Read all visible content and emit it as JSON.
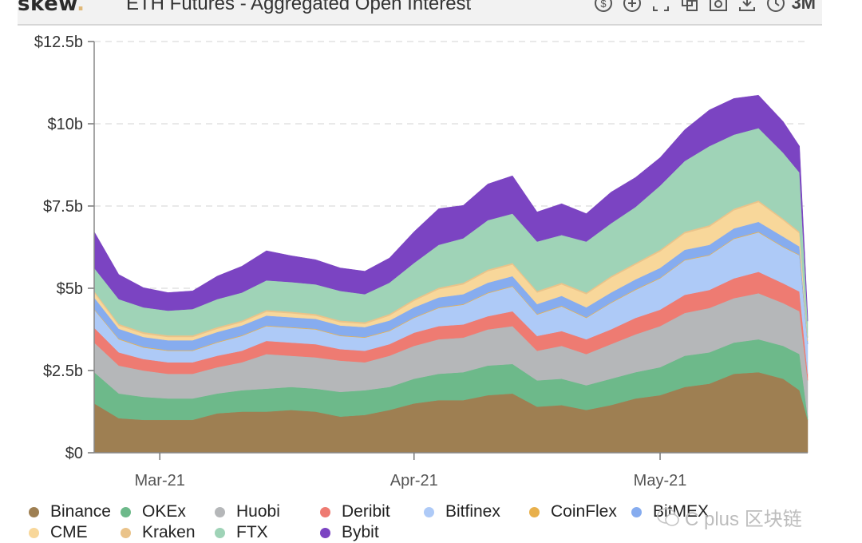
{
  "header": {
    "logo": "skew",
    "logo_dot": ".",
    "title": "ETH Futures - Aggregated Open Interest",
    "toolbar_icons": [
      "dollar-icon",
      "plus-icon",
      "fullscreen-icon",
      "copy-icon",
      "camera-icon",
      "download-icon",
      "clock-icon"
    ],
    "range": "3M"
  },
  "watermark": "C plus 区块链",
  "chart_data": {
    "type": "area",
    "stacked": true,
    "title": "ETH Futures - Aggregated Open Interest",
    "xlabel": "",
    "ylabel": "",
    "ylim": [
      0,
      12.5
    ],
    "yticks": [
      0,
      2.5,
      5,
      7.5,
      10,
      12.5
    ],
    "ytick_labels": [
      "$0",
      "$2.5b",
      "$5b",
      "$7.5b",
      "$10b",
      "$12.5b"
    ],
    "xticks": [
      "2021-03-01",
      "2021-04-01",
      "2021-05-01"
    ],
    "xtick_labels": [
      "Mar-21",
      "Apr-21",
      "May-21"
    ],
    "x_start": "2021-02-21",
    "x_end": "2021-05-19",
    "grid": true,
    "legend_position": "bottom",
    "x": [
      "2021-02-21",
      "2021-02-24",
      "2021-02-27",
      "2021-03-02",
      "2021-03-05",
      "2021-03-08",
      "2021-03-11",
      "2021-03-14",
      "2021-03-17",
      "2021-03-20",
      "2021-03-23",
      "2021-03-26",
      "2021-03-29",
      "2021-04-01",
      "2021-04-04",
      "2021-04-07",
      "2021-04-10",
      "2021-04-13",
      "2021-04-16",
      "2021-04-19",
      "2021-04-22",
      "2021-04-25",
      "2021-04-28",
      "2021-05-01",
      "2021-05-04",
      "2021-05-07",
      "2021-05-10",
      "2021-05-13",
      "2021-05-16",
      "2021-05-18",
      "2021-05-19"
    ],
    "series": [
      {
        "name": "Binance",
        "color": "#9e7f52",
        "values": [
          1.5,
          1.05,
          1.0,
          1.0,
          1.0,
          1.2,
          1.25,
          1.25,
          1.3,
          1.25,
          1.1,
          1.15,
          1.3,
          1.5,
          1.6,
          1.6,
          1.75,
          1.8,
          1.4,
          1.45,
          1.3,
          1.45,
          1.65,
          1.75,
          2.0,
          2.1,
          2.4,
          2.45,
          2.25,
          1.9,
          1.0
        ]
      },
      {
        "name": "OKEx",
        "color": "#6db98a",
        "values": [
          0.95,
          0.75,
          0.7,
          0.65,
          0.65,
          0.6,
          0.65,
          0.7,
          0.7,
          0.7,
          0.75,
          0.75,
          0.7,
          0.75,
          0.8,
          0.85,
          0.9,
          0.9,
          0.8,
          0.8,
          0.75,
          0.8,
          0.8,
          0.85,
          0.95,
          0.95,
          0.95,
          1.0,
          1.0,
          1.1,
          0.1
        ]
      },
      {
        "name": "Huobi",
        "color": "#b5b7b9",
        "values": [
          0.9,
          0.85,
          0.8,
          0.75,
          0.75,
          0.8,
          0.85,
          1.05,
          0.95,
          0.95,
          0.95,
          0.85,
          0.95,
          1.0,
          1.05,
          1.05,
          1.1,
          1.15,
          0.9,
          1.0,
          0.95,
          1.05,
          1.15,
          1.25,
          1.3,
          1.35,
          1.35,
          1.4,
          1.3,
          1.3,
          1.1
        ]
      },
      {
        "name": "Deribit",
        "color": "#ee7b72",
        "values": [
          0.45,
          0.4,
          0.35,
          0.35,
          0.35,
          0.35,
          0.35,
          0.4,
          0.4,
          0.4,
          0.35,
          0.35,
          0.35,
          0.4,
          0.4,
          0.4,
          0.4,
          0.45,
          0.45,
          0.45,
          0.45,
          0.45,
          0.5,
          0.5,
          0.55,
          0.55,
          0.6,
          0.65,
          0.6,
          0.6,
          0.2
        ]
      },
      {
        "name": "Bitfinex",
        "color": "#aecaf7",
        "values": [
          0.55,
          0.4,
          0.35,
          0.35,
          0.35,
          0.4,
          0.45,
          0.45,
          0.45,
          0.45,
          0.4,
          0.4,
          0.4,
          0.45,
          0.55,
          0.6,
          0.7,
          0.75,
          0.65,
          0.75,
          0.65,
          0.8,
          0.85,
          0.95,
          1.05,
          1.05,
          1.2,
          1.2,
          1.1,
          1.1,
          0.9
        ]
      },
      {
        "name": "CoinFlex",
        "color": "#e8b04c",
        "values": [
          0.02,
          0.02,
          0.02,
          0.02,
          0.02,
          0.02,
          0.02,
          0.02,
          0.02,
          0.02,
          0.02,
          0.02,
          0.02,
          0.02,
          0.02,
          0.02,
          0.02,
          0.02,
          0.02,
          0.02,
          0.02,
          0.02,
          0.02,
          0.02,
          0.02,
          0.02,
          0.02,
          0.02,
          0.02,
          0.02,
          0.0
        ]
      },
      {
        "name": "BitMEX",
        "color": "#86acef",
        "values": [
          0.35,
          0.3,
          0.3,
          0.3,
          0.3,
          0.3,
          0.3,
          0.3,
          0.3,
          0.3,
          0.3,
          0.3,
          0.3,
          0.3,
          0.3,
          0.3,
          0.3,
          0.3,
          0.3,
          0.3,
          0.3,
          0.3,
          0.3,
          0.3,
          0.3,
          0.3,
          0.3,
          0.3,
          0.3,
          0.25,
          0.1
        ]
      },
      {
        "name": "CME",
        "color": "#f8d79a",
        "values": [
          0.15,
          0.1,
          0.1,
          0.1,
          0.1,
          0.1,
          0.1,
          0.12,
          0.12,
          0.1,
          0.1,
          0.1,
          0.15,
          0.2,
          0.25,
          0.3,
          0.35,
          0.35,
          0.35,
          0.35,
          0.4,
          0.45,
          0.45,
          0.5,
          0.5,
          0.55,
          0.55,
          0.6,
          0.5,
          0.4,
          0.1
        ]
      },
      {
        "name": "Kraken",
        "color": "#eac38a",
        "values": [
          0.05,
          0.05,
          0.05,
          0.05,
          0.05,
          0.05,
          0.05,
          0.05,
          0.05,
          0.05,
          0.05,
          0.05,
          0.05,
          0.05,
          0.05,
          0.05,
          0.05,
          0.05,
          0.05,
          0.05,
          0.05,
          0.05,
          0.05,
          0.05,
          0.05,
          0.05,
          0.05,
          0.05,
          0.05,
          0.05,
          0.0
        ]
      },
      {
        "name": "FTX",
        "color": "#9fd3b7",
        "values": [
          0.7,
          0.75,
          0.75,
          0.75,
          0.8,
          0.85,
          0.85,
          0.9,
          0.9,
          0.9,
          0.9,
          0.85,
          0.95,
          1.1,
          1.3,
          1.35,
          1.5,
          1.5,
          1.5,
          1.45,
          1.55,
          1.6,
          1.7,
          1.95,
          2.15,
          2.4,
          2.25,
          2.2,
          2.0,
          1.8,
          0.5
        ]
      },
      {
        "name": "Bybit",
        "color": "#7b44c2",
        "values": [
          1.1,
          0.75,
          0.6,
          0.55,
          0.55,
          0.7,
          0.8,
          0.9,
          0.8,
          0.75,
          0.7,
          0.7,
          0.75,
          0.95,
          1.1,
          1.0,
          1.1,
          1.15,
          0.9,
          0.95,
          0.85,
          0.95,
          0.9,
          0.85,
          0.95,
          1.1,
          1.1,
          1.0,
          0.95,
          0.8,
          0.15
        ]
      }
    ]
  },
  "legend": {
    "row1": [
      "Binance",
      "OKEx",
      "Huobi",
      "Deribit",
      "Bitfinex",
      "CoinFlex",
      "BitMEX"
    ],
    "row2": [
      "CME",
      "Kraken",
      "FTX",
      "Bybit"
    ]
  }
}
